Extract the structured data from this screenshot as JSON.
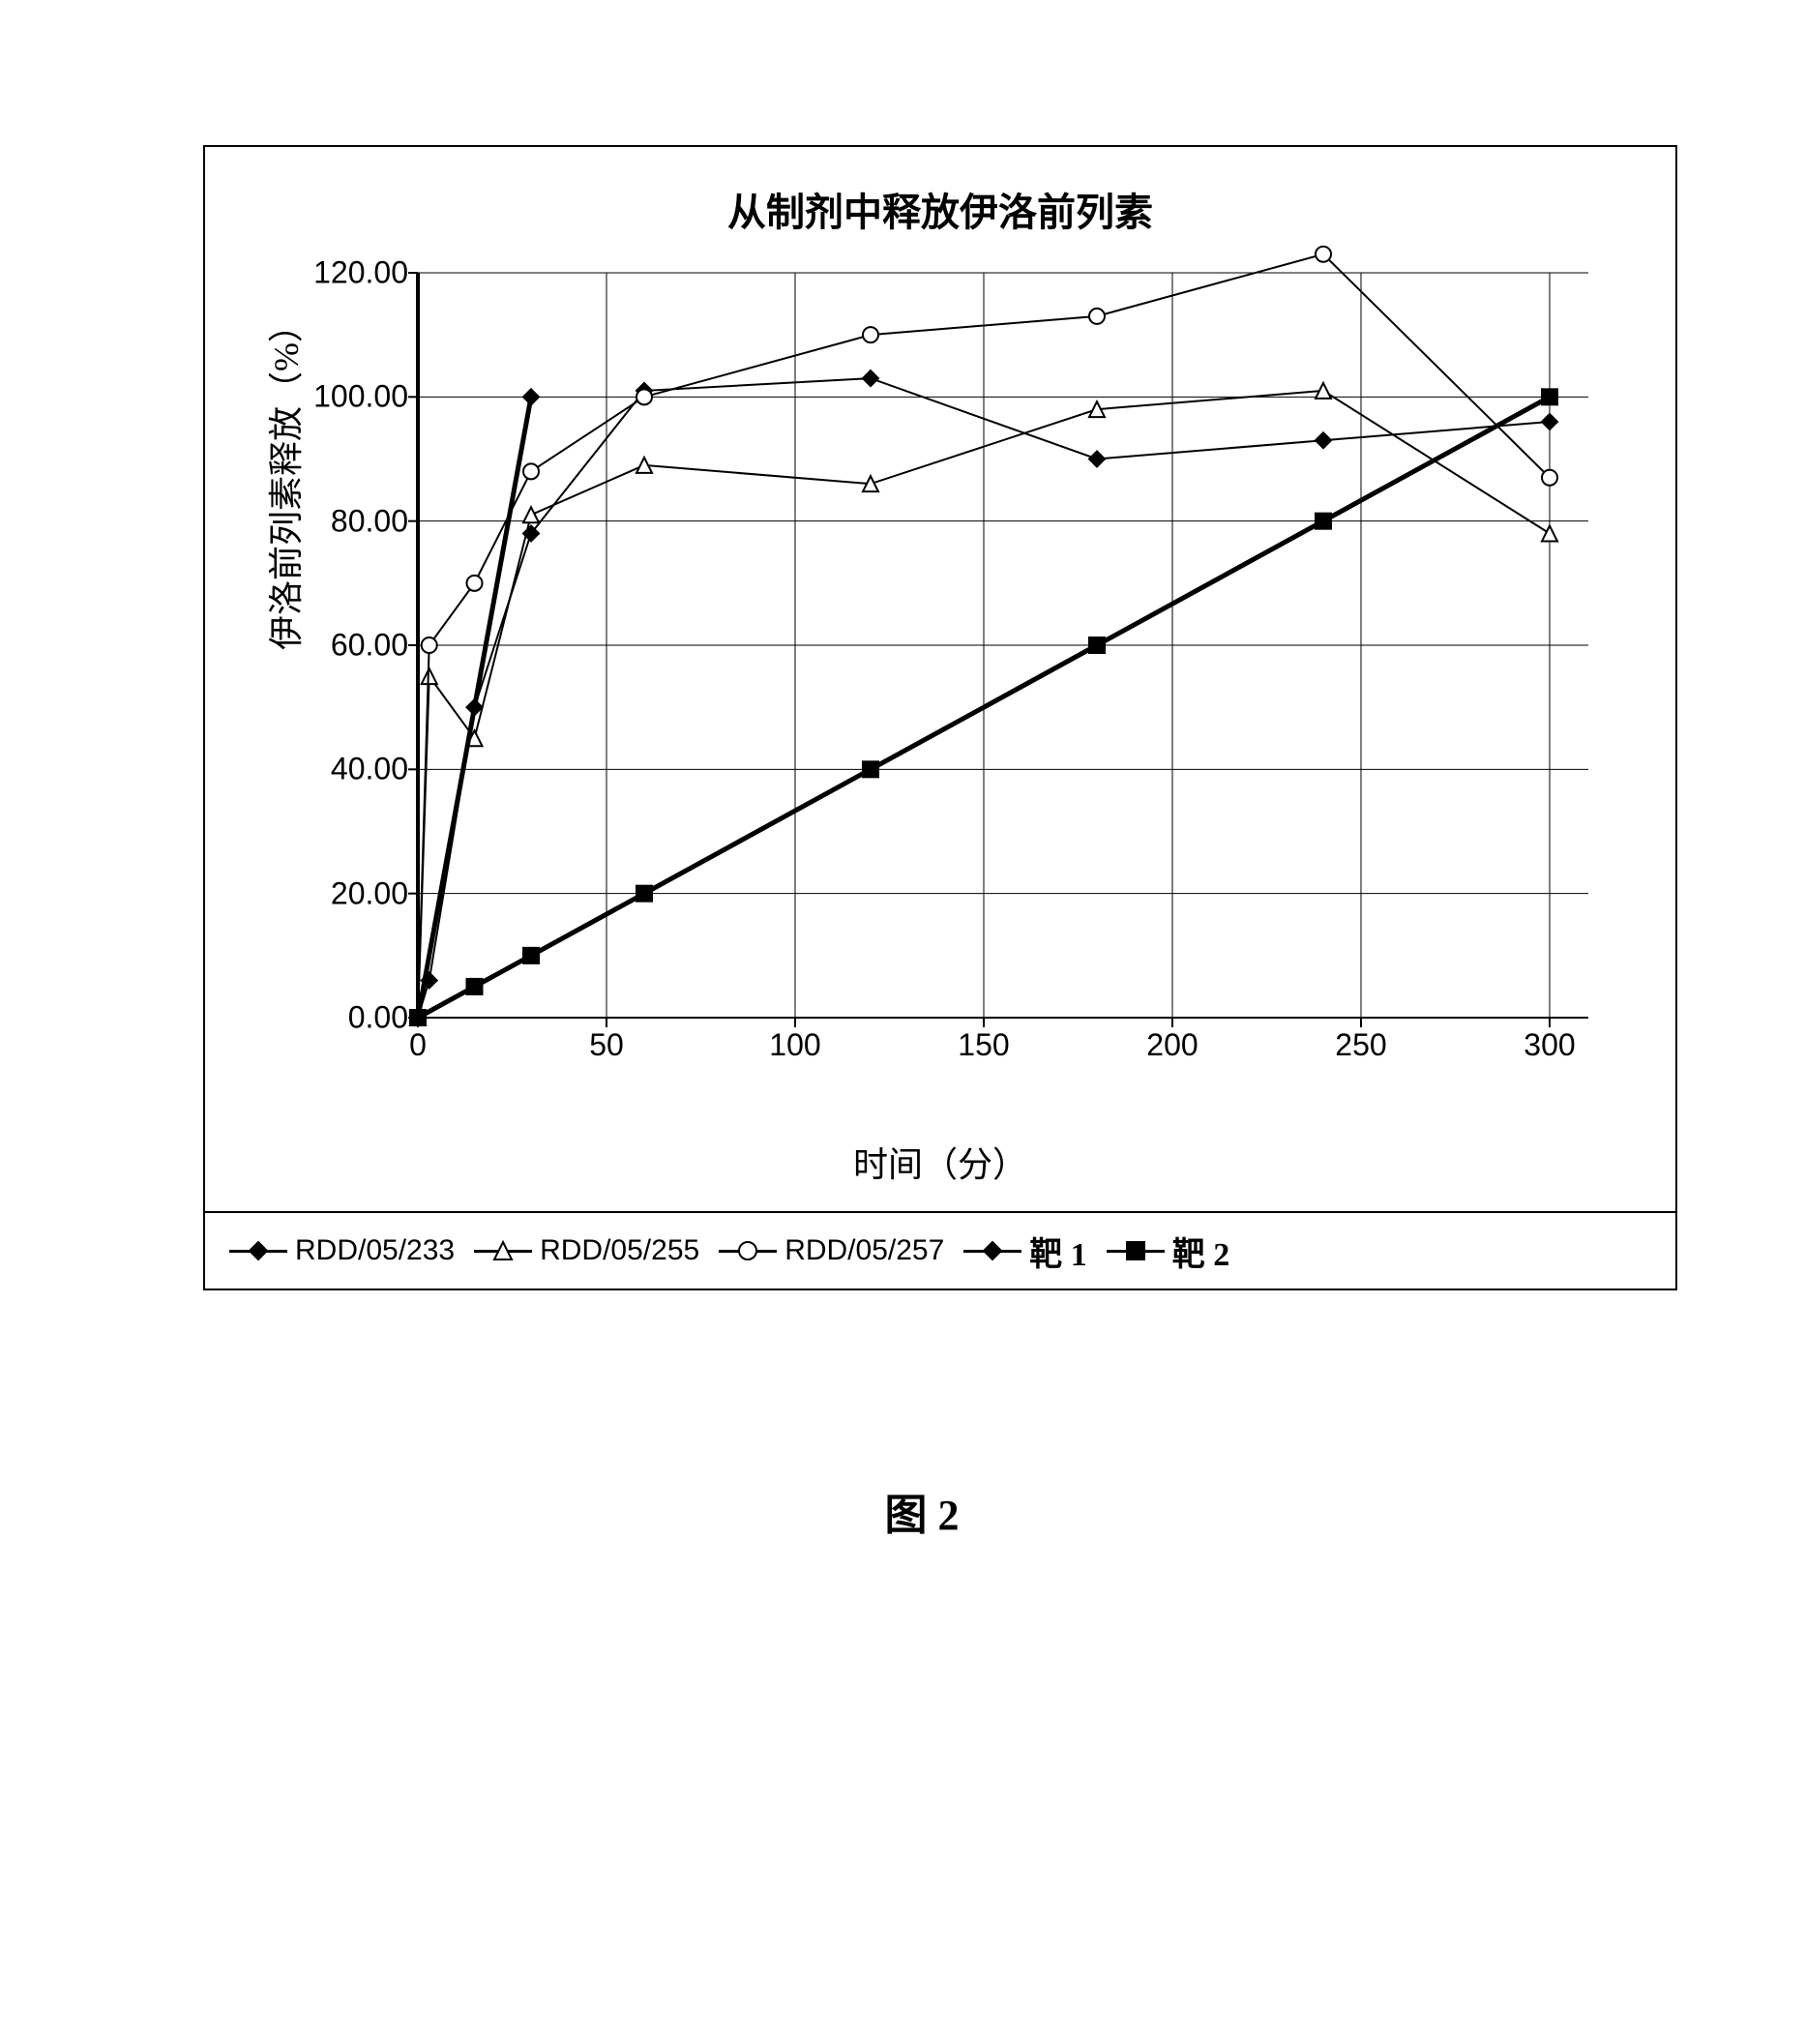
{
  "figure_caption": "图 2",
  "chart": {
    "type": "line",
    "title": "从制剂中释放伊洛前列素",
    "xlabel": "时间（分）",
    "ylabel": "伊洛前列素释放（%）",
    "xlim": [
      0,
      300
    ],
    "ylim": [
      0,
      120
    ],
    "xtick_step": 50,
    "ytick_step": 20,
    "y_tick_format": "fixed2",
    "x_ticks": [
      0,
      50,
      100,
      150,
      200,
      250,
      300
    ],
    "y_ticks": [
      0,
      20,
      40,
      60,
      80,
      100,
      120
    ],
    "background_color": "#ffffff",
    "grid_color": "#000000",
    "grid_on": true,
    "axis_color": "#000000",
    "axis_width_left": 4,
    "axis_width_bottom": 2,
    "line_width": 2,
    "marker_size": 16,
    "series": [
      {
        "name": "RDD/05/233",
        "x": [
          0,
          3,
          15,
          30,
          60,
          120,
          180,
          240,
          300
        ],
        "y": [
          0,
          6,
          50,
          78,
          101,
          103,
          90,
          93,
          96
        ],
        "color": "#000000",
        "marker": "diamond-filled",
        "fill": "#000000"
      },
      {
        "name": "RDD/05/255",
        "x": [
          0,
          3,
          15,
          30,
          60,
          120,
          180,
          240,
          300
        ],
        "y": [
          0,
          55,
          45,
          81,
          89,
          86,
          98,
          101,
          78
        ],
        "color": "#000000",
        "marker": "triangle-open",
        "fill": "#ffffff"
      },
      {
        "name": "RDD/05/257",
        "x": [
          0,
          3,
          15,
          30,
          60,
          120,
          180,
          240,
          300
        ],
        "y": [
          0,
          60,
          70,
          88,
          100,
          110,
          113,
          123,
          87
        ],
        "color": "#000000",
        "marker": "circle-open",
        "fill": "#ffffff"
      },
      {
        "name": "靶 1",
        "x": [
          0,
          30
        ],
        "y": [
          0,
          100
        ],
        "color": "#000000",
        "marker": "diamond-filled",
        "fill": "#000000",
        "line_width": 5
      },
      {
        "name": "靶 2",
        "x": [
          0,
          15,
          30,
          60,
          120,
          180,
          240,
          300
        ],
        "y": [
          0,
          5,
          10,
          20,
          40,
          60,
          80,
          100
        ],
        "color": "#000000",
        "marker": "square-filled",
        "fill": "#000000",
        "line_width": 5
      }
    ],
    "legend_items": [
      {
        "label": "RDD/05/233",
        "marker": "diamond-filled",
        "fill": "#000000",
        "cn": false
      },
      {
        "label": "RDD/05/255",
        "marker": "triangle-open",
        "fill": "#ffffff",
        "cn": false
      },
      {
        "label": "RDD/05/257",
        "marker": "circle-open",
        "fill": "#ffffff",
        "cn": false
      },
      {
        "label": "靶 1",
        "marker": "diamond-filled",
        "fill": "#000000",
        "cn": true
      },
      {
        "label": "靶 2",
        "marker": "square-filled",
        "fill": "#000000",
        "cn": true
      }
    ]
  }
}
